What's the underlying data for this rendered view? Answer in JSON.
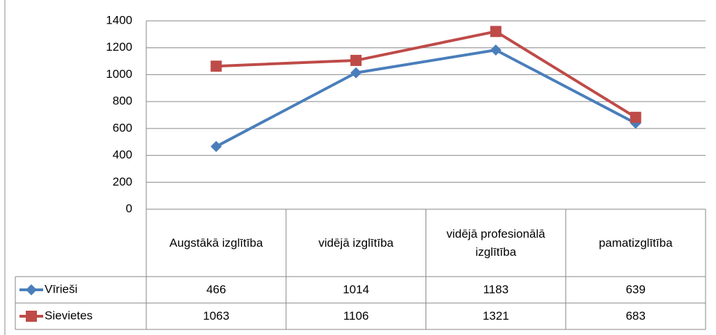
{
  "chart_data": {
    "type": "line",
    "categories": [
      "Augstākā izglītība",
      "vidējā izglītība",
      "vidējā profesionālā izglītība",
      "pamatizglītība"
    ],
    "series": [
      {
        "name": "Vīrieši",
        "color": "#4a7ebb",
        "marker": "diamond",
        "values": [
          466,
          1014,
          1183,
          639
        ]
      },
      {
        "name": "Sievietes",
        "color": "#be4b48",
        "marker": "square",
        "values": [
          1063,
          1106,
          1321,
          683
        ]
      }
    ],
    "ylim": [
      0,
      1400
    ],
    "yticks": [
      0,
      200,
      400,
      600,
      800,
      1000,
      1200,
      1400
    ],
    "grid": true,
    "data_table": true
  }
}
